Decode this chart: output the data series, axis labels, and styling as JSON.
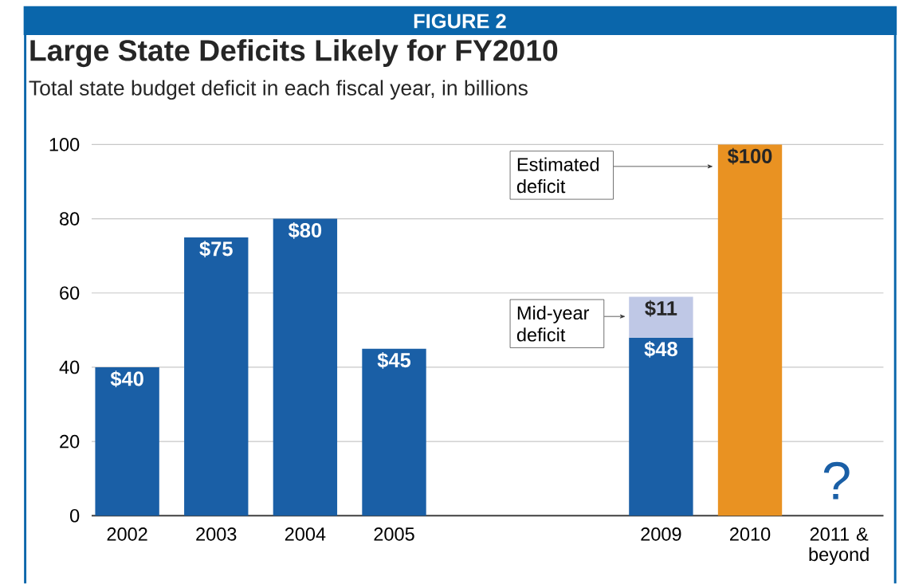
{
  "chart_data": {
    "type": "bar",
    "title": "Large State Deficits Likely for FY2010",
    "subtitle": "Total state budget deficit in each fiscal year, in billions",
    "categories": [
      "2002",
      "2003",
      "2004",
      "2005",
      null,
      null,
      "2009",
      "2010",
      "2011 & beyond"
    ],
    "stacked": true,
    "series": [
      {
        "colors": [
          "#1a5fa6",
          "#1a5fa6",
          "#1a5fa6",
          "#1a5fa6",
          null,
          null,
          "#1a5fa6",
          "#e99222",
          null
        ],
        "values": [
          40,
          75,
          80,
          45,
          null,
          null,
          48,
          100,
          null
        ],
        "value_labels": [
          "$40",
          "$75",
          "$80",
          "$45",
          null,
          null,
          "$48",
          "$100",
          null
        ]
      },
      {
        "color": "#bfc8e6",
        "values": [
          null,
          null,
          null,
          null,
          null,
          null,
          11,
          null,
          null
        ],
        "value_labels": [
          null,
          null,
          null,
          null,
          null,
          null,
          "$11",
          null,
          null
        ]
      }
    ],
    "ylim": [
      0,
      100
    ],
    "yticks": [
      0,
      20,
      40,
      60,
      80,
      100
    ],
    "grid": "y",
    "annotations": [
      "FIGURE 2",
      "Estimated deficit",
      "Mid-year deficit",
      "?"
    ]
  }
}
